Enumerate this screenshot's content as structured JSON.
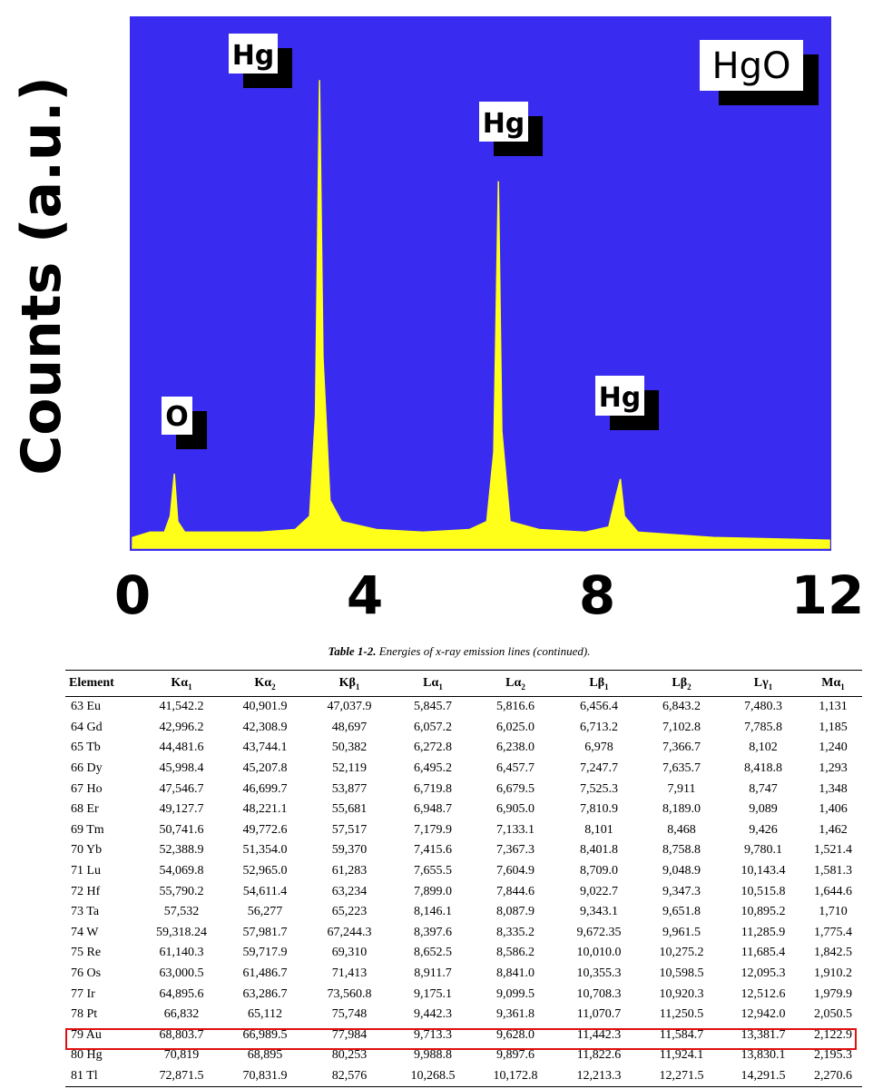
{
  "chart_data": {
    "type": "line",
    "ylabel": "Counts (a.u.)",
    "xlabel": "",
    "xlim": [
      0,
      12
    ],
    "x_ticks": [
      "0",
      "4",
      "8",
      "12"
    ],
    "legend": "HgO",
    "background_color": "#3a2bf0",
    "line_color": "#ffff1a",
    "series": [
      {
        "points": [
          [
            0.0,
            0.02
          ],
          [
            0.3,
            0.03
          ],
          [
            0.55,
            0.03
          ],
          [
            0.65,
            0.06
          ],
          [
            0.72,
            0.14
          ],
          [
            0.78,
            0.05
          ],
          [
            0.9,
            0.03
          ],
          [
            1.5,
            0.03
          ],
          [
            2.2,
            0.03
          ],
          [
            2.8,
            0.035
          ],
          [
            3.05,
            0.06
          ],
          [
            3.15,
            0.25
          ],
          [
            3.22,
            0.88
          ],
          [
            3.28,
            0.36
          ],
          [
            3.4,
            0.09
          ],
          [
            3.6,
            0.05
          ],
          [
            4.2,
            0.035
          ],
          [
            5.0,
            0.03
          ],
          [
            5.8,
            0.035
          ],
          [
            6.1,
            0.05
          ],
          [
            6.22,
            0.18
          ],
          [
            6.3,
            0.69
          ],
          [
            6.36,
            0.22
          ],
          [
            6.5,
            0.05
          ],
          [
            7.0,
            0.035
          ],
          [
            7.8,
            0.03
          ],
          [
            8.2,
            0.04
          ],
          [
            8.33,
            0.1
          ],
          [
            8.4,
            0.13
          ],
          [
            8.47,
            0.06
          ],
          [
            8.7,
            0.03
          ],
          [
            10.0,
            0.02
          ],
          [
            12.0,
            0.015
          ]
        ]
      }
    ],
    "annotations": [
      {
        "text": "O",
        "x": 0.72
      },
      {
        "text": "Hg",
        "x": 3.22
      },
      {
        "text": "Hg",
        "x": 6.3
      },
      {
        "text": "Hg",
        "x": 8.4
      }
    ]
  },
  "table": {
    "caption_bold": "Table 1-2.",
    "caption_rest": " Energies of x-ray emission lines (continued).",
    "headers": [
      "Element",
      "Kα",
      "Kα",
      "Kβ",
      "Lα",
      "Lα",
      "Lβ",
      "Lβ",
      "Lγ",
      "Mα"
    ],
    "header_subs": [
      "",
      "1",
      "2",
      "1",
      "1",
      "2",
      "1",
      "2",
      "1",
      "1"
    ],
    "highlight_row": "80 Hg",
    "highlight_color": "#e01010",
    "rows": [
      [
        "63  Eu",
        "41,542.2",
        "40,901.9",
        "47,037.9",
        "5,845.7",
        "5,816.6",
        "6,456.4",
        "6,843.2",
        "7,480.3",
        "1,131"
      ],
      [
        "64  Gd",
        "42,996.2",
        "42,308.9",
        "48,697",
        "6,057.2",
        "6,025.0",
        "6,713.2",
        "7,102.8",
        "7,785.8",
        "1,185"
      ],
      [
        "65  Tb",
        "44,481.6",
        "43,744.1",
        "50,382",
        "6,272.8",
        "6,238.0",
        "6,978",
        "7,366.7",
        "8,102",
        "1,240"
      ],
      [
        "66  Dy",
        "45,998.4",
        "45,207.8",
        "52,119",
        "6,495.2",
        "6,457.7",
        "7,247.7",
        "7,635.7",
        "8,418.8",
        "1,293"
      ],
      [
        "67  Ho",
        "47,546.7",
        "46,699.7",
        "53,877",
        "6,719.8",
        "6,679.5",
        "7,525.3",
        "7,911",
        "8,747",
        "1,348"
      ],
      [
        "68  Er",
        "49,127.7",
        "48,221.1",
        "55,681",
        "6,948.7",
        "6,905.0",
        "7,810.9",
        "8,189.0",
        "9,089",
        "1,406"
      ],
      [
        "69  Tm",
        "50,741.6",
        "49,772.6",
        "57,517",
        "7,179.9",
        "7,133.1",
        "8,101",
        "8,468",
        "9,426",
        "1,462"
      ],
      [
        "70  Yb",
        "52,388.9",
        "51,354.0",
        "59,370",
        "7,415.6",
        "7,367.3",
        "8,401.8",
        "8,758.8",
        "9,780.1",
        "1,521.4"
      ],
      [
        "71  Lu",
        "54,069.8",
        "52,965.0",
        "61,283",
        "7,655.5",
        "7,604.9",
        "8,709.0",
        "9,048.9",
        "10,143.4",
        "1,581.3"
      ],
      [
        "72  Hf",
        "55,790.2",
        "54,611.4",
        "63,234",
        "7,899.0",
        "7,844.6",
        "9,022.7",
        "9,347.3",
        "10,515.8",
        "1,644.6"
      ],
      [
        "73  Ta",
        "57,532",
        "56,277",
        "65,223",
        "8,146.1",
        "8,087.9",
        "9,343.1",
        "9,651.8",
        "10,895.2",
        "1,710"
      ],
      [
        "74  W",
        "59,318.24",
        "57,981.7",
        "67,244.3",
        "8,397.6",
        "8,335.2",
        "9,672.35",
        "9,961.5",
        "11,285.9",
        "1,775.4"
      ],
      [
        "75  Re",
        "61,140.3",
        "59,717.9",
        "69,310",
        "8,652.5",
        "8,586.2",
        "10,010.0",
        "10,275.2",
        "11,685.4",
        "1,842.5"
      ],
      [
        "76  Os",
        "63,000.5",
        "61,486.7",
        "71,413",
        "8,911.7",
        "8,841.0",
        "10,355.3",
        "10,598.5",
        "12,095.3",
        "1,910.2"
      ],
      [
        "77  Ir",
        "64,895.6",
        "63,286.7",
        "73,560.8",
        "9,175.1",
        "9,099.5",
        "10,708.3",
        "10,920.3",
        "12,512.6",
        "1,979.9"
      ],
      [
        "78  Pt",
        "66,832",
        "65,112",
        "75,748",
        "9,442.3",
        "9,361.8",
        "11,070.7",
        "11,250.5",
        "12,942.0",
        "2,050.5"
      ],
      [
        "79  Au",
        "68,803.7",
        "66,989.5",
        "77,984",
        "9,713.3",
        "9,628.0",
        "11,442.3",
        "11,584.7",
        "13,381.7",
        "2,122.9"
      ],
      [
        "80  Hg",
        "70,819",
        "68,895",
        "80,253",
        "9,988.8",
        "9,897.6",
        "11,822.6",
        "11,924.1",
        "13,830.1",
        "2,195.3"
      ],
      [
        "81  Tl",
        "72,871.5",
        "70,831.9",
        "82,576",
        "10,268.5",
        "10,172.8",
        "12,213.3",
        "12,271.5",
        "14,291.5",
        "2,270.6"
      ]
    ]
  }
}
